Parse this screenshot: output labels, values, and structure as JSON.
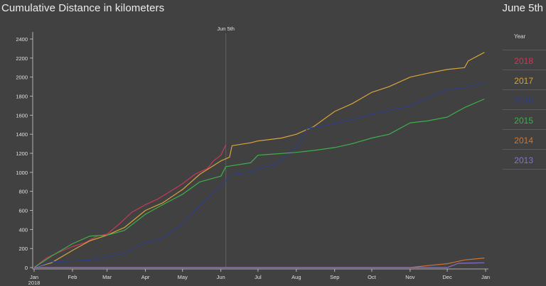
{
  "header": {
    "title": "Cumulative Distance in kilometers",
    "date_readout": "June 5th"
  },
  "legend": {
    "header": "Year",
    "items": [
      {
        "label": "2018",
        "color": "#c8395a"
      },
      {
        "label": "2017",
        "color": "#d9a43c"
      },
      {
        "label": "2016",
        "color": "#2e3e8c"
      },
      {
        "label": "2015",
        "color": "#3db04a"
      },
      {
        "label": "2014",
        "color": "#cf7532"
      },
      {
        "label": "2013",
        "color": "#8a72c8"
      }
    ]
  },
  "chart_data": {
    "type": "line",
    "title": "Cumulative Distance in kilometers",
    "xlabel": "",
    "ylabel": "",
    "ylim": [
      0,
      2400
    ],
    "yticks": [
      0,
      200,
      400,
      600,
      800,
      1000,
      1200,
      1400,
      1600,
      1800,
      2000,
      2200,
      2400
    ],
    "xlim": [
      "2018-01-01",
      "2019-01-01"
    ],
    "xticks": [
      {
        "date": "2018-01-01",
        "label": "Jan",
        "sublabel": "2018"
      },
      {
        "date": "2018-02-01",
        "label": "Feb"
      },
      {
        "date": "2018-03-01",
        "label": "Mar"
      },
      {
        "date": "2018-04-01",
        "label": "Apr"
      },
      {
        "date": "2018-05-01",
        "label": "May"
      },
      {
        "date": "2018-06-01",
        "label": "Jun"
      },
      {
        "date": "2018-07-01",
        "label": "Jul"
      },
      {
        "date": "2018-08-01",
        "label": "Aug"
      },
      {
        "date": "2018-09-01",
        "label": "Sep"
      },
      {
        "date": "2018-10-01",
        "label": "Oct"
      },
      {
        "date": "2018-11-01",
        "label": "Nov"
      },
      {
        "date": "2018-12-01",
        "label": "Dec"
      },
      {
        "date": "2019-01-01",
        "label": "Jan"
      }
    ],
    "marker": {
      "date": "2018-06-05",
      "label": "Jun 5th"
    },
    "grid": false,
    "legend_position": "right",
    "series": [
      {
        "name": "2018",
        "color": "#c8395a",
        "points": [
          [
            "2018-01-01",
            0
          ],
          [
            "2018-01-11",
            100
          ],
          [
            "2018-01-21",
            160
          ],
          [
            "2018-02-01",
            220
          ],
          [
            "2018-02-11",
            260
          ],
          [
            "2018-02-21",
            330
          ],
          [
            "2018-03-01",
            350
          ],
          [
            "2018-03-11",
            460
          ],
          [
            "2018-03-21",
            580
          ],
          [
            "2018-04-01",
            660
          ],
          [
            "2018-04-11",
            720
          ],
          [
            "2018-04-21",
            800
          ],
          [
            "2018-05-01",
            880
          ],
          [
            "2018-05-11",
            980
          ],
          [
            "2018-05-21",
            1040
          ],
          [
            "2018-05-26",
            1120
          ],
          [
            "2018-06-01",
            1180
          ],
          [
            "2018-06-05",
            1290
          ]
        ]
      },
      {
        "name": "2017",
        "color": "#d9a43c",
        "points": [
          [
            "2018-01-01",
            0
          ],
          [
            "2018-01-15",
            50
          ],
          [
            "2018-02-01",
            180
          ],
          [
            "2018-02-15",
            280
          ],
          [
            "2018-03-01",
            340
          ],
          [
            "2018-03-15",
            420
          ],
          [
            "2018-04-01",
            600
          ],
          [
            "2018-04-15",
            680
          ],
          [
            "2018-05-01",
            820
          ],
          [
            "2018-05-15",
            980
          ],
          [
            "2018-06-01",
            1120
          ],
          [
            "2018-06-08",
            1160
          ],
          [
            "2018-06-10",
            1280
          ],
          [
            "2018-06-25",
            1310
          ],
          [
            "2018-07-01",
            1330
          ],
          [
            "2018-07-20",
            1360
          ],
          [
            "2018-08-01",
            1400
          ],
          [
            "2018-08-15",
            1480
          ],
          [
            "2018-09-01",
            1640
          ],
          [
            "2018-09-15",
            1720
          ],
          [
            "2018-10-01",
            1840
          ],
          [
            "2018-10-15",
            1900
          ],
          [
            "2018-11-01",
            2000
          ],
          [
            "2018-11-15",
            2040
          ],
          [
            "2018-12-01",
            2080
          ],
          [
            "2018-12-15",
            2100
          ],
          [
            "2018-12-18",
            2170
          ],
          [
            "2018-12-31",
            2260
          ]
        ]
      },
      {
        "name": "2016",
        "color": "#2e3e8c",
        "points": [
          [
            "2018-01-01",
            0
          ],
          [
            "2018-01-15",
            60
          ],
          [
            "2018-02-01",
            70
          ],
          [
            "2018-02-15",
            80
          ],
          [
            "2018-03-01",
            110
          ],
          [
            "2018-03-15",
            150
          ],
          [
            "2018-04-01",
            260
          ],
          [
            "2018-04-15",
            310
          ],
          [
            "2018-05-01",
            460
          ],
          [
            "2018-05-15",
            650
          ],
          [
            "2018-06-01",
            860
          ],
          [
            "2018-06-10",
            980
          ],
          [
            "2018-06-25",
            1000
          ],
          [
            "2018-07-01",
            1040
          ],
          [
            "2018-07-15",
            1080
          ],
          [
            "2018-08-01",
            1260
          ],
          [
            "2018-08-10",
            1460
          ],
          [
            "2018-09-01",
            1510
          ],
          [
            "2018-10-01",
            1610
          ],
          [
            "2018-10-15",
            1650
          ],
          [
            "2018-11-01",
            1700
          ],
          [
            "2018-11-15",
            1780
          ],
          [
            "2018-12-01",
            1870
          ],
          [
            "2018-12-15",
            1890
          ],
          [
            "2018-12-31",
            1940
          ]
        ]
      },
      {
        "name": "2015",
        "color": "#3db04a",
        "points": [
          [
            "2018-01-01",
            0
          ],
          [
            "2018-01-15",
            120
          ],
          [
            "2018-02-01",
            250
          ],
          [
            "2018-02-15",
            330
          ],
          [
            "2018-03-01",
            340
          ],
          [
            "2018-03-15",
            390
          ],
          [
            "2018-04-01",
            560
          ],
          [
            "2018-04-15",
            660
          ],
          [
            "2018-05-01",
            770
          ],
          [
            "2018-05-15",
            900
          ],
          [
            "2018-06-01",
            960
          ],
          [
            "2018-06-05",
            1060
          ],
          [
            "2018-06-25",
            1100
          ],
          [
            "2018-07-01",
            1180
          ],
          [
            "2018-08-01",
            1210
          ],
          [
            "2018-08-15",
            1230
          ],
          [
            "2018-09-01",
            1260
          ],
          [
            "2018-09-15",
            1300
          ],
          [
            "2018-10-01",
            1360
          ],
          [
            "2018-10-15",
            1400
          ],
          [
            "2018-11-01",
            1520
          ],
          [
            "2018-11-15",
            1540
          ],
          [
            "2018-12-01",
            1580
          ],
          [
            "2018-12-15",
            1680
          ],
          [
            "2018-12-31",
            1770
          ]
        ]
      },
      {
        "name": "2014",
        "color": "#cf7532",
        "points": [
          [
            "2018-01-01",
            0
          ],
          [
            "2018-11-01",
            0
          ],
          [
            "2018-11-15",
            20
          ],
          [
            "2018-12-01",
            40
          ],
          [
            "2018-12-15",
            80
          ],
          [
            "2018-12-31",
            100
          ]
        ]
      },
      {
        "name": "2013",
        "color": "#8a72c8",
        "points": [
          [
            "2018-01-01",
            0
          ],
          [
            "2018-12-01",
            0
          ],
          [
            "2018-12-10",
            45
          ],
          [
            "2018-12-31",
            50
          ]
        ]
      }
    ]
  }
}
